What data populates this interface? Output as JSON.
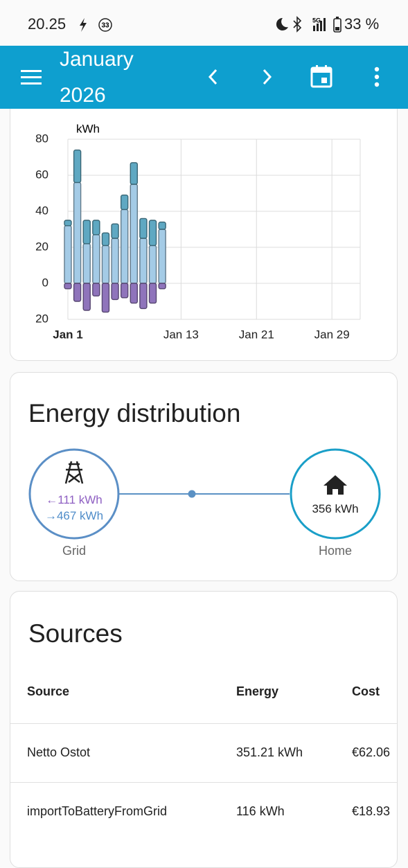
{
  "status": {
    "time": "20.25",
    "notification": "33",
    "battery": "33 %"
  },
  "header": {
    "title": "January 2026"
  },
  "chart_data": {
    "type": "bar",
    "ylabel": "kWh",
    "x": [
      1,
      2,
      3,
      4,
      5,
      6,
      7,
      8,
      9,
      10,
      11
    ],
    "series": [
      {
        "color": "#a4cbe6",
        "values": [
          32,
          56,
          22,
          27,
          21,
          25,
          41,
          55,
          25,
          21,
          30
        ]
      },
      {
        "color": "#5fa8c2",
        "values": [
          3,
          18,
          13,
          8,
          7,
          8,
          8,
          12,
          11,
          14,
          4
        ]
      },
      {
        "color": "#8f74bb",
        "values": [
          -3,
          -10,
          -15,
          -7,
          -16,
          -9,
          -8,
          -11,
          -14,
          -11,
          -3
        ]
      }
    ],
    "stacked": true,
    "xlim": [
      1,
      32
    ],
    "xticks": [
      {
        "value": 1,
        "label": "Jan 1"
      },
      {
        "value": 13,
        "label": "Jan 13"
      },
      {
        "value": 21,
        "label": "Jan 21"
      },
      {
        "value": 29,
        "label": "Jan 29"
      }
    ],
    "ylim": [
      -20,
      80
    ],
    "yticks": [
      {
        "value": -20,
        "label": "20"
      },
      0,
      20,
      40,
      60,
      80
    ],
    "grid": true
  },
  "distribution": {
    "title": "Energy distribution",
    "grid": {
      "label": "Grid",
      "returned": "←111 kWh",
      "consumed": "→467 kWh"
    },
    "home": {
      "label": "Home",
      "value": "356 kWh"
    }
  },
  "sources": {
    "title": "Sources",
    "columns": [
      "Source",
      "Energy",
      "Cost"
    ],
    "rows": [
      [
        "Netto Ostot",
        "351.21 kWh",
        "€62.06"
      ],
      [
        "importToBatteryFromGrid",
        "116 kWh",
        "€18.93"
      ]
    ]
  }
}
